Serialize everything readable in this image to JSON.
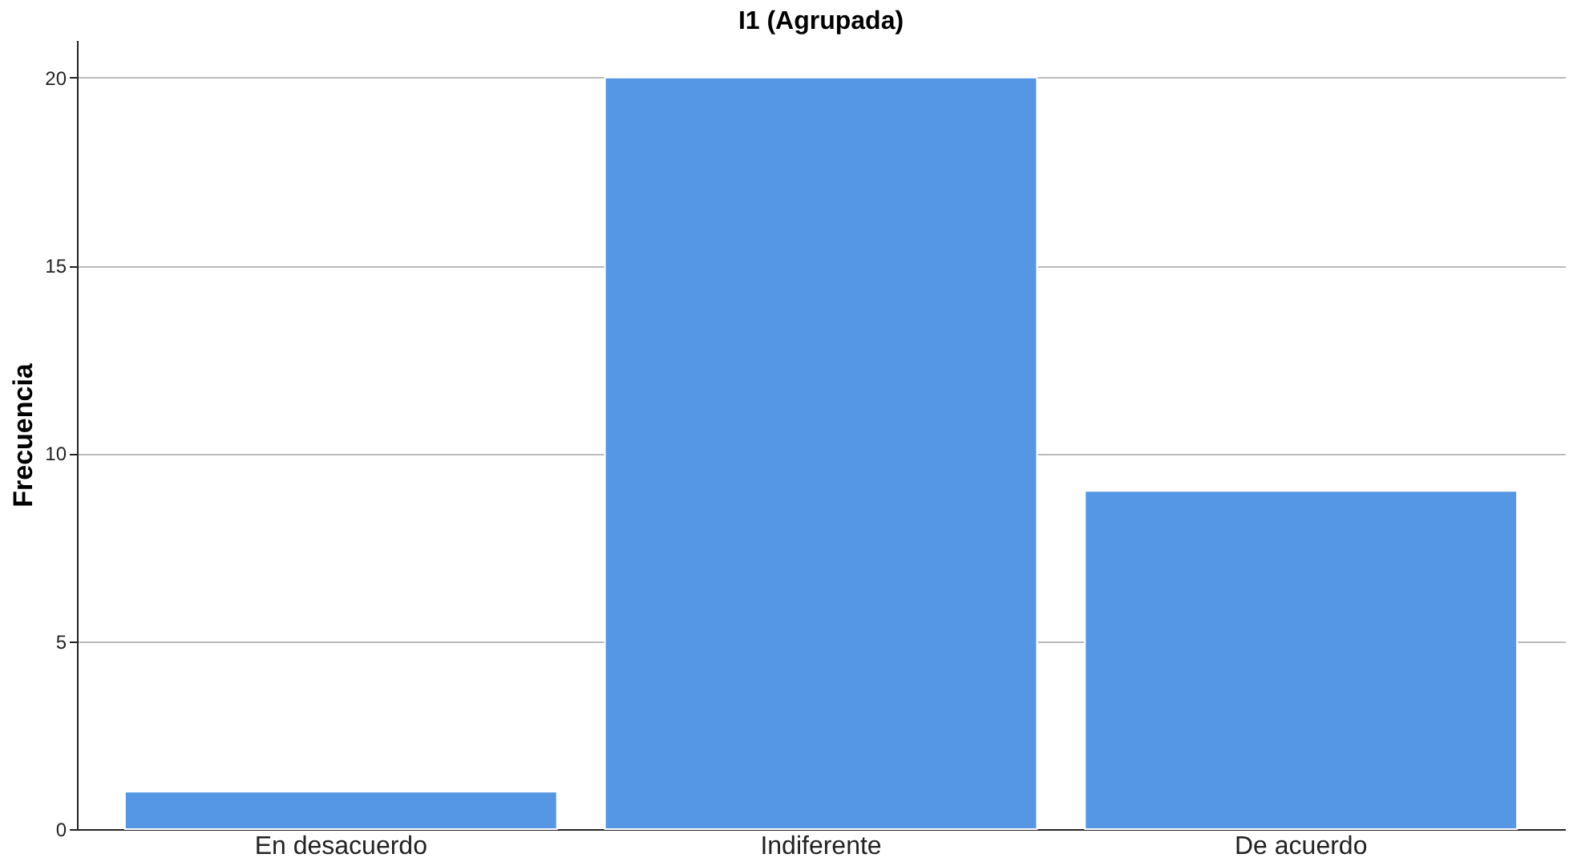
{
  "chart_data": {
    "type": "bar",
    "title": "I1 (Agrupada)",
    "ylabel": "Frecuencia",
    "categories": [
      "En desacuerdo",
      "Indiferente",
      "De acuerdo"
    ],
    "values": [
      1,
      20,
      9
    ],
    "color": "#5597e4",
    "ylim": [
      0,
      21
    ],
    "yticks": [
      0,
      5,
      10,
      15,
      20
    ],
    "grid": "y"
  }
}
